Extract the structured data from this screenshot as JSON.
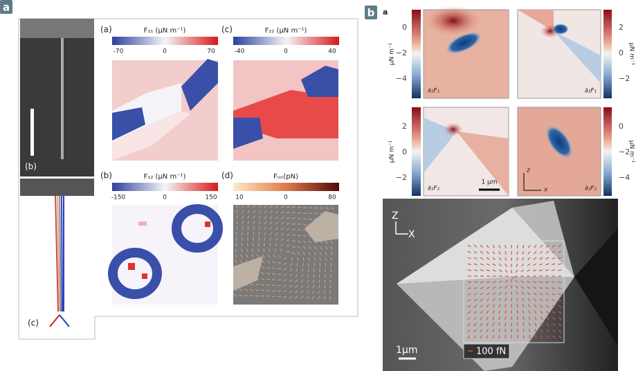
{
  "panel_a": {
    "badge": "a",
    "maps": [
      {
        "label": "(a)",
        "title": "F₁₁ (μN m⁻¹)",
        "ticks": [
          "-70",
          "0",
          "70"
        ]
      },
      {
        "label": "(c)",
        "title": "F₂₂ (μN m⁻¹)",
        "ticks": [
          "-40",
          "0",
          "40"
        ]
      },
      {
        "label": "(b)",
        "title": "F₁₂ (μN m⁻¹)",
        "ticks": [
          "-150",
          "0",
          "150"
        ]
      },
      {
        "label": "(d)",
        "title": "Fᵢₙₜ(pN)",
        "ticks": [
          "10",
          "0",
          "80"
        ]
      }
    ],
    "sem_label": "(b)",
    "schematic_label": "(c)"
  },
  "panel_b": {
    "badge": "b",
    "sublabel": "a",
    "row1": {
      "left_ticks": [
        "0",
        "−2",
        "−4"
      ],
      "right_ticks": [
        "2",
        "0",
        "−2"
      ],
      "unit": "μN m⁻¹",
      "maps": [
        "∂₁F₁",
        "∂₂F₁"
      ]
    },
    "row2": {
      "left_ticks": [
        "2",
        "0",
        "−2"
      ],
      "right_ticks": [
        "0",
        "−2",
        "−4"
      ],
      "unit": "μN m⁻¹",
      "maps": [
        "∂₁F₂",
        "∂₂F₂"
      ]
    },
    "scale": "1 μm",
    "axis_z": "z",
    "axis_x": "x",
    "sem": {
      "axis_z": "Z",
      "axis_x": "X",
      "scale": "1μm",
      "force_scale": "100 fN"
    }
  }
}
